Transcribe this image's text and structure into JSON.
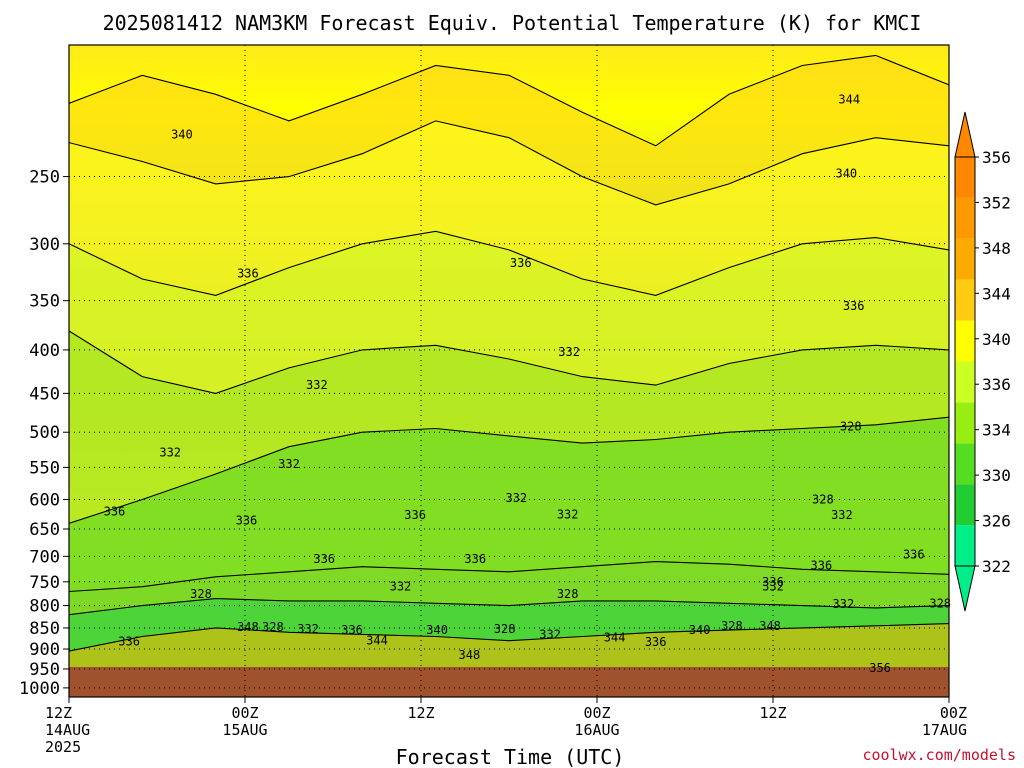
{
  "chart_data": {
    "type": "contour",
    "title": "2025081412 NAM3KM Forecast Equiv. Potential Temperature (K) for KMCI",
    "xlabel": "Forecast Time (UTC)",
    "ylabel": "",
    "y_scale": "log-pressure",
    "ylim": [
      1025,
      175
    ],
    "y_ticks": [
      "250",
      "300",
      "350",
      "400",
      "450",
      "500",
      "550",
      "600",
      "650",
      "700",
      "750",
      "800",
      "850",
      "900",
      "950",
      "1000"
    ],
    "x_hours": [
      0,
      12,
      24,
      36,
      48,
      60
    ],
    "x_ticks": [
      {
        "l1": "12Z",
        "l2": "14AUG",
        "l3": "2025"
      },
      {
        "l1": "00Z",
        "l2": "15AUG",
        "l3": ""
      },
      {
        "l1": "12Z",
        "l2": "",
        "l3": ""
      },
      {
        "l1": "00Z",
        "l2": "16AUG",
        "l3": ""
      },
      {
        "l1": "12Z",
        "l2": "",
        "l3": ""
      },
      {
        "l1": "00Z",
        "l2": "17AUG",
        "l3": ""
      }
    ],
    "colorbar": {
      "labels": [
        "322",
        "326",
        "330",
        "334",
        "336",
        "340",
        "344",
        "348",
        "352",
        "356"
      ],
      "colors": [
        "#00ee88",
        "#22cc33",
        "#55dd22",
        "#99ee11",
        "#ccff22",
        "#ffff00",
        "#ffcc11",
        "#ffaa00",
        "#ff9900",
        "#ff8800"
      ]
    },
    "contour_levels": [
      {
        "value": "344",
        "color": "#ffd31a",
        "p": [
          205,
          190,
          200,
          215,
          200,
          185,
          190,
          210,
          230,
          200,
          185,
          180,
          195
        ]
      },
      {
        "value": "340",
        "color": "#ffff22",
        "p": [
          228,
          240,
          255,
          250,
          235,
          215,
          225,
          250,
          270,
          255,
          235,
          225,
          230
        ]
      },
      {
        "value": "336",
        "color": "#ccf52a",
        "p": [
          300,
          330,
          345,
          320,
          300,
          290,
          305,
          330,
          345,
          320,
          300,
          295,
          305
        ]
      },
      {
        "value": "332",
        "color": "#99e020",
        "p": [
          380,
          430,
          450,
          420,
          400,
          395,
          410,
          430,
          440,
          415,
          400,
          395,
          400
        ]
      },
      {
        "value": "328",
        "color": "#55d525",
        "p": [
          640,
          600,
          560,
          520,
          500,
          495,
          505,
          515,
          510,
          500,
          495,
          490,
          480
        ]
      },
      {
        "value": "332",
        "color": "#7ed628",
        "p": [
          770,
          760,
          740,
          730,
          720,
          725,
          730,
          720,
          710,
          715,
          725,
          730,
          735
        ]
      },
      {
        "value": "328",
        "color": "#22d04a",
        "p": [
          820,
          800,
          785,
          790,
          790,
          795,
          800,
          790,
          790,
          795,
          800,
          805,
          800
        ]
      },
      {
        "value": "348",
        "color": "#ffb400",
        "p": [
          905,
          870,
          850,
          860,
          865,
          870,
          880,
          870,
          860,
          855,
          850,
          845,
          840
        ]
      }
    ],
    "contour_labels": [
      {
        "text": "344",
        "t": 53.2,
        "p": 203
      },
      {
        "text": "340",
        "t": 7.7,
        "p": 223
      },
      {
        "text": "340",
        "t": 53.0,
        "p": 248
      },
      {
        "text": "336",
        "t": 12.2,
        "p": 325
      },
      {
        "text": "336",
        "t": 30.8,
        "p": 316
      },
      {
        "text": "336",
        "t": 53.5,
        "p": 355
      },
      {
        "text": "332",
        "t": 16.9,
        "p": 440
      },
      {
        "text": "332",
        "t": 34.1,
        "p": 402
      },
      {
        "text": "328",
        "t": 53.3,
        "p": 492
      },
      {
        "text": "332",
        "t": 6.9,
        "p": 528
      },
      {
        "text": "332",
        "t": 15.0,
        "p": 545
      },
      {
        "text": "332",
        "t": 30.5,
        "p": 598
      },
      {
        "text": "332",
        "t": 34.0,
        "p": 625
      },
      {
        "text": "328",
        "t": 51.4,
        "p": 600
      },
      {
        "text": "332",
        "t": 52.7,
        "p": 626
      },
      {
        "text": "336",
        "t": 3.1,
        "p": 620
      },
      {
        "text": "336",
        "t": 12.1,
        "p": 635
      },
      {
        "text": "336",
        "t": 23.6,
        "p": 626
      },
      {
        "text": "336",
        "t": 17.4,
        "p": 705
      },
      {
        "text": "336",
        "t": 27.7,
        "p": 705
      },
      {
        "text": "336",
        "t": 51.3,
        "p": 718
      },
      {
        "text": "336",
        "t": 57.6,
        "p": 697
      },
      {
        "text": "332",
        "t": 22.6,
        "p": 760
      },
      {
        "text": "328",
        "t": 9.0,
        "p": 775
      },
      {
        "text": "328",
        "t": 34.0,
        "p": 775
      },
      {
        "text": "336",
        "t": 48.0,
        "p": 750
      },
      {
        "text": "332",
        "t": 48.0,
        "p": 760
      },
      {
        "text": "332",
        "t": 52.8,
        "p": 797
      },
      {
        "text": "328",
        "t": 59.4,
        "p": 795
      },
      {
        "text": "348",
        "t": 12.2,
        "p": 848
      },
      {
        "text": "328",
        "t": 13.9,
        "p": 848
      },
      {
        "text": "332",
        "t": 16.3,
        "p": 853
      },
      {
        "text": "336",
        "t": 19.3,
        "p": 855
      },
      {
        "text": "344",
        "t": 21.0,
        "p": 880
      },
      {
        "text": "340",
        "t": 25.1,
        "p": 855
      },
      {
        "text": "328",
        "t": 29.7,
        "p": 852
      },
      {
        "text": "332",
        "t": 32.8,
        "p": 865
      },
      {
        "text": "344",
        "t": 37.2,
        "p": 872
      },
      {
        "text": "336",
        "t": 40.0,
        "p": 883
      },
      {
        "text": "340",
        "t": 43.0,
        "p": 855
      },
      {
        "text": "328",
        "t": 45.2,
        "p": 845
      },
      {
        "text": "348",
        "t": 47.8,
        "p": 845
      },
      {
        "text": "336",
        "t": 4.1,
        "p": 882
      },
      {
        "text": "348",
        "t": 27.3,
        "p": 915
      },
      {
        "text": "356",
        "t": 55.3,
        "p": 948
      }
    ]
  },
  "credit": "coolwx.com/models"
}
